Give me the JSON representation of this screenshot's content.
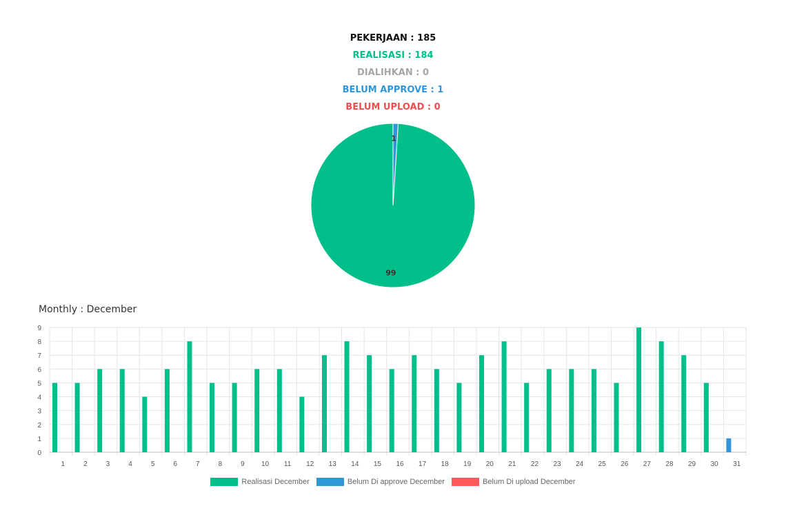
{
  "summary": {
    "pekerjaan": "PEKERJAAN : 185",
    "realisasi": "REALISASI : 184",
    "dialihkan": "DIALIHKAN : 0",
    "belum_approve": "BELUM APPROVE : 1",
    "belum_upload": "BELUM UPLOAD : 0"
  },
  "monthly_title": "Monthly : December",
  "colors": {
    "realisasi": "#00bf8a",
    "belum_approve": "#2f97d8",
    "belum_upload": "#ff5a5a"
  },
  "chart_data": [
    {
      "type": "pie",
      "slices": [
        {
          "value": 99,
          "label": "99",
          "color": "#00bf8a"
        },
        {
          "value": 1,
          "label": "1",
          "color": "#2f97d8"
        }
      ]
    },
    {
      "type": "bar",
      "title": "Monthly : December",
      "categories": [
        "1",
        "2",
        "3",
        "4",
        "5",
        "6",
        "7",
        "8",
        "9",
        "10",
        "11",
        "12",
        "13",
        "14",
        "15",
        "16",
        "17",
        "18",
        "19",
        "20",
        "21",
        "22",
        "23",
        "24",
        "25",
        "26",
        "27",
        "28",
        "29",
        "30",
        "31"
      ],
      "series": [
        {
          "name": "Realisasi December",
          "color": "#00bf8a",
          "values": [
            5,
            5,
            6,
            6,
            4,
            6,
            8,
            5,
            5,
            6,
            6,
            4,
            7,
            8,
            7,
            6,
            7,
            6,
            5,
            7,
            8,
            5,
            6,
            6,
            6,
            5,
            9,
            8,
            7,
            5,
            0
          ]
        },
        {
          "name": "Belum Di approve December",
          "color": "#2f97d8",
          "values": [
            0,
            0,
            0,
            0,
            0,
            0,
            0,
            0,
            0,
            0,
            0,
            0,
            0,
            0,
            0,
            0,
            0,
            0,
            0,
            0,
            0,
            0,
            0,
            0,
            0,
            0,
            0,
            0,
            0,
            0,
            1
          ]
        },
        {
          "name": "Belum Di upload December",
          "color": "#ff5a5a",
          "values": [
            0,
            0,
            0,
            0,
            0,
            0,
            0,
            0,
            0,
            0,
            0,
            0,
            0,
            0,
            0,
            0,
            0,
            0,
            0,
            0,
            0,
            0,
            0,
            0,
            0,
            0,
            0,
            0,
            0,
            0,
            0
          ]
        }
      ],
      "ylim": [
        0,
        9
      ],
      "yticks": [
        "0",
        "1",
        "2",
        "3",
        "4",
        "5",
        "6",
        "7",
        "8",
        "9"
      ],
      "grid": true,
      "legend": "bottom"
    }
  ]
}
